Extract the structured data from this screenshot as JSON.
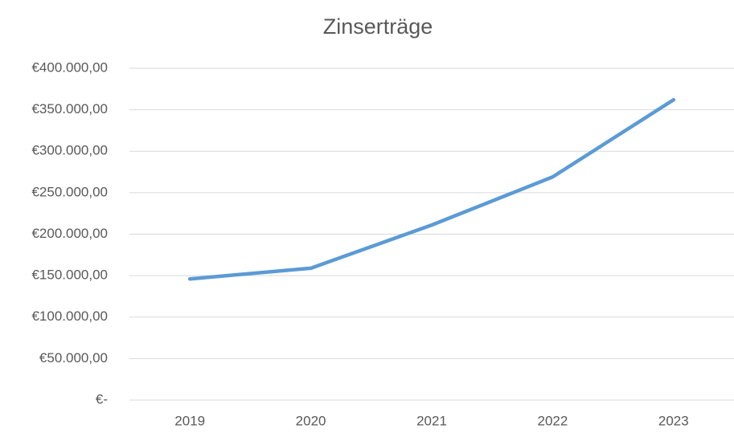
{
  "chart_data": {
    "type": "line",
    "title": "Zinserträge",
    "categories": [
      "2019",
      "2020",
      "2021",
      "2022",
      "2023"
    ],
    "series": [
      {
        "name": "Zinserträge",
        "color": "#5b9bd5",
        "values": [
          146000,
          159000,
          211000,
          269000,
          362000
        ]
      }
    ],
    "ylim": [
      0,
      400000
    ],
    "yticks": [
      {
        "value": 0,
        "label": "€-"
      },
      {
        "value": 50000,
        "label": "€50.000,00"
      },
      {
        "value": 100000,
        "label": "€100.000,00"
      },
      {
        "value": 150000,
        "label": "€150.000,00"
      },
      {
        "value": 200000,
        "label": "€200.000,00"
      },
      {
        "value": 250000,
        "label": "€250.000,00"
      },
      {
        "value": 300000,
        "label": "€300.000,00"
      },
      {
        "value": 350000,
        "label": "€350.000,00"
      },
      {
        "value": 400000,
        "label": "€400.000,00"
      }
    ],
    "grid": true
  }
}
